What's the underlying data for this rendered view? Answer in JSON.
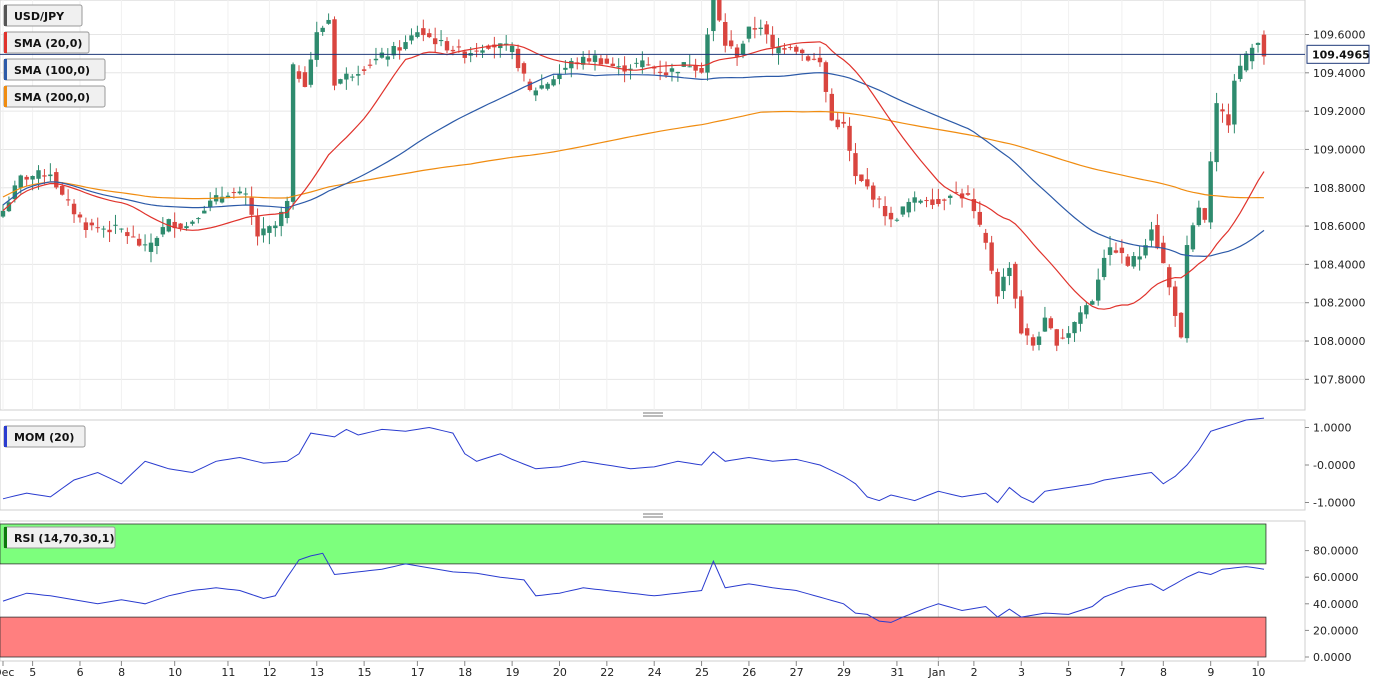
{
  "colors": {
    "bull": "#2e8b6e",
    "bear": "#d9453f",
    "sma20": "#e0332c",
    "sma100": "#2c5aa8",
    "sma200": "#f08c10",
    "mom": "#2a3ccf",
    "rsi": "#2a3ccf",
    "grid": "#e6e6e6",
    "rsi_overbought_fill": "#7dff7d",
    "rsi_oversold_fill": "#ff7f7f"
  },
  "symbol_badge": "USD/JPY",
  "price_tag": "109.4965",
  "legend": [
    {
      "label": "SMA (20,0)",
      "color": "#e0332c"
    },
    {
      "label": "SMA (100,0)",
      "color": "#2c5aa8"
    },
    {
      "label": "SMA (200,0)",
      "color": "#f08c10"
    }
  ],
  "mom_badge": "MOM (20)",
  "rsi_badge": "RSI (14,70,30,1)",
  "chart_data": {
    "type": "candlestick",
    "price_axis": {
      "range": [
        107.64,
        109.78
      ],
      "ticks": [
        {
          "v": 107.8,
          "label": "107.8000"
        },
        {
          "v": 108.0,
          "label": "108.0000"
        },
        {
          "v": 108.2,
          "label": "108.2000"
        },
        {
          "v": 108.4,
          "label": "108.4000"
        },
        {
          "v": 108.6,
          "label": "108.6000"
        },
        {
          "v": 108.8,
          "label": "108.8000"
        },
        {
          "v": 109.0,
          "label": "109.0000"
        },
        {
          "v": 109.2,
          "label": "109.2000"
        },
        {
          "v": 109.4,
          "label": "109.4000"
        },
        {
          "v": 109.6,
          "label": "109.6000"
        }
      ],
      "current_price": 109.4965
    },
    "x_ticks": [
      {
        "i": 0,
        "label": "Dec"
      },
      {
        "i": 5,
        "label": "5"
      },
      {
        "i": 13,
        "label": "6"
      },
      {
        "i": 20,
        "label": "8"
      },
      {
        "i": 29,
        "label": "10"
      },
      {
        "i": 38,
        "label": "11"
      },
      {
        "i": 45,
        "label": "12"
      },
      {
        "i": 53,
        "label": "13"
      },
      {
        "i": 61,
        "label": "15"
      },
      {
        "i": 70,
        "label": "17"
      },
      {
        "i": 78,
        "label": "18"
      },
      {
        "i": 86,
        "label": "19"
      },
      {
        "i": 94,
        "label": "20"
      },
      {
        "i": 102,
        "label": "22"
      },
      {
        "i": 110,
        "label": "24"
      },
      {
        "i": 118,
        "label": "25"
      },
      {
        "i": 126,
        "label": "26"
      },
      {
        "i": 134,
        "label": "27"
      },
      {
        "i": 142,
        "label": "29"
      },
      {
        "i": 151,
        "label": "31"
      },
      {
        "i": 158,
        "label": "Jan"
      },
      {
        "i": 164,
        "label": "2"
      },
      {
        "i": 172,
        "label": "3"
      },
      {
        "i": 180,
        "label": "5"
      },
      {
        "i": 189,
        "label": "7"
      },
      {
        "i": 196,
        "label": "8"
      },
      {
        "i": 204,
        "label": "9"
      },
      {
        "i": 212,
        "label": "10"
      }
    ],
    "week_separator_index": 158,
    "mom_axis": {
      "range": [
        -1.2,
        1.2
      ],
      "ticks": [
        {
          "v": 1.0,
          "label": "1.0000"
        },
        {
          "v": 0.0,
          "label": "-0.0000"
        },
        {
          "v": -1.0,
          "label": "-1.0000"
        }
      ]
    },
    "rsi_axis": {
      "range": [
        0,
        100
      ],
      "ticks": [
        {
          "v": 80,
          "label": "80.0000"
        },
        {
          "v": 60,
          "label": "60.0000"
        },
        {
          "v": 40,
          "label": "40.0000"
        },
        {
          "v": 20,
          "label": "20.0000"
        },
        {
          "v": 0,
          "label": "0.0000"
        }
      ],
      "overbought": 70,
      "oversold": 30
    },
    "close_anchors": [
      [
        0,
        108.68
      ],
      [
        3,
        108.85
      ],
      [
        8,
        108.88
      ],
      [
        10,
        108.75
      ],
      [
        14,
        108.6
      ],
      [
        20,
        108.58
      ],
      [
        24,
        108.48
      ],
      [
        28,
        108.62
      ],
      [
        31,
        108.6
      ],
      [
        34,
        108.7
      ],
      [
        38,
        108.78
      ],
      [
        41,
        108.75
      ],
      [
        43,
        108.55
      ],
      [
        46,
        108.6
      ],
      [
        48,
        108.72
      ],
      [
        49,
        109.42
      ],
      [
        51,
        109.35
      ],
      [
        53,
        109.6
      ],
      [
        55,
        109.68
      ],
      [
        56,
        109.35
      ],
      [
        59,
        109.4
      ],
      [
        62,
        109.45
      ],
      [
        65,
        109.5
      ],
      [
        68,
        109.55
      ],
      [
        70,
        109.62
      ],
      [
        74,
        109.55
      ],
      [
        78,
        109.5
      ],
      [
        82,
        109.55
      ],
      [
        86,
        109.52
      ],
      [
        89,
        109.3
      ],
      [
        92,
        109.35
      ],
      [
        96,
        109.45
      ],
      [
        100,
        109.48
      ],
      [
        104,
        109.42
      ],
      [
        108,
        109.45
      ],
      [
        112,
        109.4
      ],
      [
        116,
        109.45
      ],
      [
        118,
        109.42
      ],
      [
        120,
        109.78
      ],
      [
        122,
        109.55
      ],
      [
        124,
        109.5
      ],
      [
        126,
        109.62
      ],
      [
        128,
        109.65
      ],
      [
        130,
        109.52
      ],
      [
        133,
        109.55
      ],
      [
        136,
        109.48
      ],
      [
        138,
        109.45
      ],
      [
        140,
        109.15
      ],
      [
        142,
        109.12
      ],
      [
        144,
        108.85
      ],
      [
        146,
        108.8
      ],
      [
        148,
        108.72
      ],
      [
        150,
        108.62
      ],
      [
        153,
        108.72
      ],
      [
        156,
        108.75
      ],
      [
        158,
        108.72
      ],
      [
        160,
        108.78
      ],
      [
        163,
        108.75
      ],
      [
        166,
        108.5
      ],
      [
        168,
        108.25
      ],
      [
        170,
        108.4
      ],
      [
        172,
        108.05
      ],
      [
        174,
        107.98
      ],
      [
        176,
        108.1
      ],
      [
        178,
        108.0
      ],
      [
        180,
        108.05
      ],
      [
        182,
        108.15
      ],
      [
        184,
        108.22
      ],
      [
        186,
        108.45
      ],
      [
        188,
        108.48
      ],
      [
        190,
        108.4
      ],
      [
        192,
        108.45
      ],
      [
        194,
        108.6
      ],
      [
        196,
        108.4
      ],
      [
        198,
        108.15
      ],
      [
        199,
        108.0
      ],
      [
        200,
        108.48
      ],
      [
        202,
        108.7
      ],
      [
        203,
        108.62
      ],
      [
        205,
        109.22
      ],
      [
        207,
        109.15
      ],
      [
        208,
        109.38
      ],
      [
        210,
        109.48
      ],
      [
        212,
        109.58
      ],
      [
        213,
        109.5
      ]
    ],
    "mom_anchors": [
      [
        0,
        -0.9
      ],
      [
        4,
        -0.75
      ],
      [
        8,
        -0.85
      ],
      [
        12,
        -0.4
      ],
      [
        16,
        -0.2
      ],
      [
        20,
        -0.5
      ],
      [
        24,
        0.1
      ],
      [
        28,
        -0.1
      ],
      [
        32,
        -0.2
      ],
      [
        36,
        0.1
      ],
      [
        40,
        0.2
      ],
      [
        44,
        0.05
      ],
      [
        48,
        0.1
      ],
      [
        50,
        0.3
      ],
      [
        52,
        0.85
      ],
      [
        56,
        0.75
      ],
      [
        58,
        0.95
      ],
      [
        60,
        0.8
      ],
      [
        64,
        0.95
      ],
      [
        68,
        0.9
      ],
      [
        72,
        1.0
      ],
      [
        76,
        0.85
      ],
      [
        78,
        0.3
      ],
      [
        80,
        0.1
      ],
      [
        84,
        0.3
      ],
      [
        86,
        0.15
      ],
      [
        90,
        -0.1
      ],
      [
        94,
        -0.05
      ],
      [
        98,
        0.1
      ],
      [
        102,
        0.0
      ],
      [
        106,
        -0.1
      ],
      [
        110,
        -0.05
      ],
      [
        114,
        0.1
      ],
      [
        118,
        0.0
      ],
      [
        120,
        0.35
      ],
      [
        122,
        0.1
      ],
      [
        126,
        0.2
      ],
      [
        130,
        0.1
      ],
      [
        134,
        0.15
      ],
      [
        138,
        0.0
      ],
      [
        142,
        -0.3
      ],
      [
        144,
        -0.5
      ],
      [
        146,
        -0.85
      ],
      [
        148,
        -0.95
      ],
      [
        150,
        -0.8
      ],
      [
        154,
        -0.95
      ],
      [
        158,
        -0.7
      ],
      [
        162,
        -0.85
      ],
      [
        166,
        -0.75
      ],
      [
        168,
        -1.0
      ],
      [
        170,
        -0.6
      ],
      [
        172,
        -0.85
      ],
      [
        174,
        -1.0
      ],
      [
        176,
        -0.7
      ],
      [
        180,
        -0.6
      ],
      [
        184,
        -0.5
      ],
      [
        186,
        -0.4
      ],
      [
        190,
        -0.3
      ],
      [
        194,
        -0.2
      ],
      [
        196,
        -0.5
      ],
      [
        198,
        -0.3
      ],
      [
        200,
        0.0
      ],
      [
        202,
        0.4
      ],
      [
        204,
        0.9
      ],
      [
        206,
        1.0
      ],
      [
        208,
        1.1
      ],
      [
        210,
        1.2
      ],
      [
        213,
        1.25
      ]
    ],
    "rsi_anchors": [
      [
        0,
        42
      ],
      [
        4,
        48
      ],
      [
        8,
        46
      ],
      [
        12,
        43
      ],
      [
        16,
        40
      ],
      [
        20,
        43
      ],
      [
        24,
        40
      ],
      [
        28,
        46
      ],
      [
        32,
        50
      ],
      [
        36,
        52
      ],
      [
        40,
        50
      ],
      [
        44,
        44
      ],
      [
        46,
        46
      ],
      [
        48,
        60
      ],
      [
        50,
        73
      ],
      [
        52,
        76
      ],
      [
        54,
        78
      ],
      [
        56,
        62
      ],
      [
        60,
        64
      ],
      [
        64,
        66
      ],
      [
        68,
        70
      ],
      [
        72,
        67
      ],
      [
        76,
        64
      ],
      [
        80,
        63
      ],
      [
        84,
        60
      ],
      [
        88,
        58
      ],
      [
        90,
        46
      ],
      [
        94,
        48
      ],
      [
        98,
        52
      ],
      [
        102,
        50
      ],
      [
        106,
        48
      ],
      [
        110,
        46
      ],
      [
        114,
        48
      ],
      [
        118,
        50
      ],
      [
        120,
        72
      ],
      [
        122,
        52
      ],
      [
        126,
        55
      ],
      [
        130,
        52
      ],
      [
        134,
        50
      ],
      [
        138,
        45
      ],
      [
        142,
        40
      ],
      [
        144,
        33
      ],
      [
        146,
        32
      ],
      [
        148,
        27
      ],
      [
        150,
        26
      ],
      [
        152,
        30
      ],
      [
        156,
        37
      ],
      [
        158,
        40
      ],
      [
        162,
        35
      ],
      [
        166,
        38
      ],
      [
        168,
        30
      ],
      [
        170,
        36
      ],
      [
        172,
        30
      ],
      [
        176,
        33
      ],
      [
        180,
        32
      ],
      [
        184,
        38
      ],
      [
        186,
        45
      ],
      [
        190,
        52
      ],
      [
        194,
        55
      ],
      [
        196,
        50
      ],
      [
        198,
        55
      ],
      [
        200,
        60
      ],
      [
        202,
        64
      ],
      [
        204,
        62
      ],
      [
        206,
        66
      ],
      [
        208,
        67
      ],
      [
        210,
        68
      ],
      [
        213,
        66
      ]
    ]
  }
}
